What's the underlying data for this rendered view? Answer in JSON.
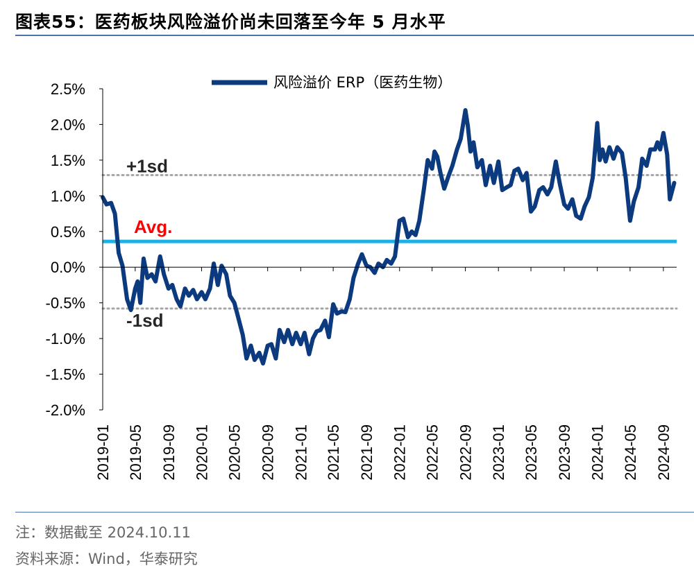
{
  "figure_label": "图表55：",
  "figure_title": "医药板块风险溢价尚未回落至今年 5 月水平",
  "note": "注：数据截至 2024.10.11",
  "source": "资料来源：Wind，华泰研究",
  "colors": {
    "series": "#0b3a7e",
    "avg": "#19b1e6",
    "sd": "#a6a6a6",
    "avg_label": "#ff0000",
    "rule": "#4a73a8"
  },
  "chart_data": {
    "type": "line",
    "title": "",
    "xlabel": "",
    "ylabel": "",
    "ylim": [
      -0.02,
      0.025
    ],
    "yticks": [
      "2.5%",
      "2.0%",
      "1.5%",
      "1.0%",
      "0.5%",
      "0.0%",
      "-0.5%",
      "-1.0%",
      "-1.5%",
      "-2.0%"
    ],
    "xticks": [
      "2019-01",
      "2019-05",
      "2019-09",
      "2020-01",
      "2020-05",
      "2020-09",
      "2021-01",
      "2021-05",
      "2021-09",
      "2022-01",
      "2022-05",
      "2022-09",
      "2023-01",
      "2023-05",
      "2023-09",
      "2024-01",
      "2024-05",
      "2024-09"
    ],
    "legend": "top-center",
    "grid": false,
    "series": [
      {
        "name": "风险溢价 ERP（医药生物）",
        "points": [
          [
            "2019-01",
            0.0098
          ],
          [
            "2019-01-15",
            0.0088
          ],
          [
            "2019-02",
            0.009
          ],
          [
            "2019-02-15",
            0.0075
          ],
          [
            "2019-03",
            0.002
          ],
          [
            "2019-03-15",
            0.0002
          ],
          [
            "2019-04",
            -0.0045
          ],
          [
            "2019-04-15",
            -0.006
          ],
          [
            "2019-05",
            -0.003
          ],
          [
            "2019-05-10",
            -0.002
          ],
          [
            "2019-05-20",
            -0.005
          ],
          [
            "2019-06",
            0.0012
          ],
          [
            "2019-06-15",
            -0.0015
          ],
          [
            "2019-07",
            -0.001
          ],
          [
            "2019-07-15",
            -0.002
          ],
          [
            "2019-08",
            0.0015
          ],
          [
            "2019-08-15",
            -0.001
          ],
          [
            "2019-09",
            -0.003
          ],
          [
            "2019-09-15",
            -0.0025
          ],
          [
            "2019-10",
            -0.0045
          ],
          [
            "2019-10-15",
            -0.0055
          ],
          [
            "2019-11",
            -0.003
          ],
          [
            "2019-11-15",
            -0.004
          ],
          [
            "2019-12",
            -0.0032
          ],
          [
            "2019-12-15",
            -0.0045
          ],
          [
            "2020-01",
            -0.0035
          ],
          [
            "2020-01-15",
            -0.0045
          ],
          [
            "2020-02",
            -0.003
          ],
          [
            "2020-02-15",
            0.0005
          ],
          [
            "2020-03",
            -0.0025
          ],
          [
            "2020-03-15",
            0.0002
          ],
          [
            "2020-04",
            -0.001
          ],
          [
            "2020-04-15",
            -0.004
          ],
          [
            "2020-05",
            -0.005
          ],
          [
            "2020-05-15",
            -0.007
          ],
          [
            "2020-06",
            -0.0095
          ],
          [
            "2020-06-15",
            -0.0128
          ],
          [
            "2020-07",
            -0.011
          ],
          [
            "2020-07-15",
            -0.013
          ],
          [
            "2020-08",
            -0.012
          ],
          [
            "2020-08-15",
            -0.0135
          ],
          [
            "2020-09",
            -0.011
          ],
          [
            "2020-09-15",
            -0.0108
          ],
          [
            "2020-10",
            -0.0128
          ],
          [
            "2020-10-15",
            -0.0088
          ],
          [
            "2020-11",
            -0.0105
          ],
          [
            "2020-11-15",
            -0.0088
          ],
          [
            "2020-12",
            -0.0108
          ],
          [
            "2020-12-15",
            -0.0092
          ],
          [
            "2021-01",
            -0.0108
          ],
          [
            "2021-01-15",
            -0.0092
          ],
          [
            "2021-02",
            -0.0122
          ],
          [
            "2021-02-15",
            -0.01
          ],
          [
            "2021-03",
            -0.009
          ],
          [
            "2021-03-15",
            -0.0088
          ],
          [
            "2021-04",
            -0.0075
          ],
          [
            "2021-04-15",
            -0.0098
          ],
          [
            "2021-05",
            -0.0052
          ],
          [
            "2021-05-15",
            -0.0065
          ],
          [
            "2021-06",
            -0.0062
          ],
          [
            "2021-06-15",
            -0.0063
          ],
          [
            "2021-07",
            -0.0045
          ],
          [
            "2021-07-15",
            -0.0015
          ],
          [
            "2021-08",
            0.0005
          ],
          [
            "2021-08-15",
            0.0018
          ],
          [
            "2021-09",
            0.0002
          ],
          [
            "2021-09-15",
            0.0
          ],
          [
            "2021-10",
            -0.0008
          ],
          [
            "2021-10-15",
            0.0005
          ],
          [
            "2021-11",
            0.0
          ],
          [
            "2021-11-15",
            0.001
          ],
          [
            "2021-12",
            0.0005
          ],
          [
            "2021-12-15",
            0.0015
          ],
          [
            "2022-01",
            0.0065
          ],
          [
            "2022-01-15",
            0.0068
          ],
          [
            "2022-02",
            0.0042
          ],
          [
            "2022-02-15",
            0.005
          ],
          [
            "2022-03",
            0.0045
          ],
          [
            "2022-03-15",
            0.0065
          ],
          [
            "2022-04",
            0.011
          ],
          [
            "2022-04-15",
            0.015
          ],
          [
            "2022-05",
            0.0138
          ],
          [
            "2022-05-10",
            0.0162
          ],
          [
            "2022-05-20",
            0.0155
          ],
          [
            "2022-06",
            0.0132
          ],
          [
            "2022-06-15",
            0.011
          ],
          [
            "2022-07",
            0.0128
          ],
          [
            "2022-07-15",
            0.0142
          ],
          [
            "2022-08",
            0.0165
          ],
          [
            "2022-08-15",
            0.018
          ],
          [
            "2022-09",
            0.022
          ],
          [
            "2022-09-10",
            0.0198
          ],
          [
            "2022-09-20",
            0.0162
          ],
          [
            "2022-10",
            0.0175
          ],
          [
            "2022-10-15",
            0.014
          ],
          [
            "2022-11",
            0.015
          ],
          [
            "2022-11-15",
            0.0115
          ],
          [
            "2022-12",
            0.0142
          ],
          [
            "2022-12-15",
            0.0118
          ],
          [
            "2023-01",
            0.0148
          ],
          [
            "2023-01-15",
            0.0108
          ],
          [
            "2023-02",
            0.0112
          ],
          [
            "2023-02-15",
            0.0115
          ],
          [
            "2023-03",
            0.0135
          ],
          [
            "2023-03-15",
            0.0138
          ],
          [
            "2023-04",
            0.0122
          ],
          [
            "2023-04-15",
            0.0132
          ],
          [
            "2023-05",
            0.0078
          ],
          [
            "2023-05-15",
            0.0085
          ],
          [
            "2023-06",
            0.0108
          ],
          [
            "2023-06-15",
            0.0112
          ],
          [
            "2023-07",
            0.0102
          ],
          [
            "2023-07-15",
            0.0112
          ],
          [
            "2023-08",
            0.0148
          ],
          [
            "2023-08-15",
            0.0118
          ],
          [
            "2023-09",
            0.0088
          ],
          [
            "2023-09-15",
            0.0082
          ],
          [
            "2023-10",
            0.0095
          ],
          [
            "2023-10-15",
            0.0072
          ],
          [
            "2023-11",
            0.0068
          ],
          [
            "2023-11-15",
            0.0085
          ],
          [
            "2023-12",
            0.0098
          ],
          [
            "2023-12-15",
            0.0125
          ],
          [
            "2024-01",
            0.0202
          ],
          [
            "2024-01-10",
            0.015
          ],
          [
            "2024-01-20",
            0.0165
          ],
          [
            "2024-02",
            0.0148
          ],
          [
            "2024-02-15",
            0.0168
          ],
          [
            "2024-03",
            0.0152
          ],
          [
            "2024-03-15",
            0.0168
          ],
          [
            "2024-04",
            0.016
          ],
          [
            "2024-04-15",
            0.0125
          ],
          [
            "2024-05",
            0.0065
          ],
          [
            "2024-05-15",
            0.0092
          ],
          [
            "2024-06",
            0.0112
          ],
          [
            "2024-06-15",
            0.0152
          ],
          [
            "2024-07",
            0.0142
          ],
          [
            "2024-07-15",
            0.0165
          ],
          [
            "2024-08",
            0.0165
          ],
          [
            "2024-08-10",
            0.0175
          ],
          [
            "2024-08-20",
            0.0165
          ],
          [
            "2024-09",
            0.0188
          ],
          [
            "2024-09-15",
            0.0158
          ],
          [
            "2024-09-25",
            0.0095
          ],
          [
            "2024-10-11",
            0.0118
          ]
        ]
      }
    ],
    "reference_lines": [
      {
        "label": "+1sd",
        "value": 0.0129,
        "style": "dotted"
      },
      {
        "label": "Avg.",
        "value": 0.0036,
        "style": "solid"
      },
      {
        "label": "-1sd",
        "value": -0.0058,
        "style": "dotted"
      }
    ]
  }
}
